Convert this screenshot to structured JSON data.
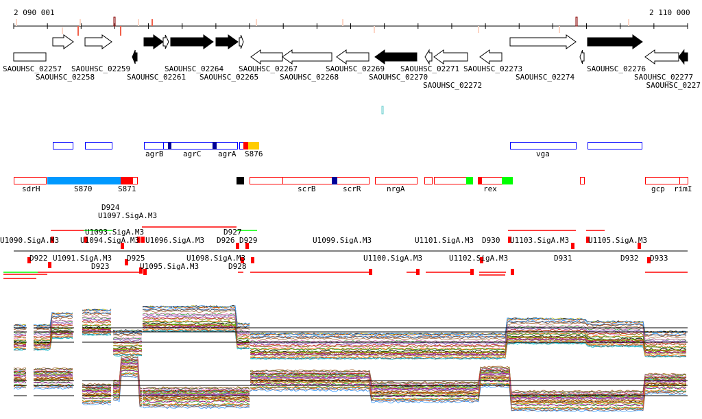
{
  "ruler": {
    "start_label": "2 090 001",
    "end_label": "2 110 000"
  },
  "genes": [
    "SAOUHSC_02257",
    "SAOUHSC_02258",
    "SAOUHSC_02259",
    "SAOUHSC_02261",
    "SAOUHSC_02264",
    "SAOUHSC_02265",
    "SAOUHSC_02267",
    "SAOUHSC_02268",
    "SAOUHSC_02269",
    "SAOUHSC_02270",
    "SAOUHSC_02271",
    "SAOUHSC_02272",
    "SAOUHSC_02273",
    "SAOUHSC_02274",
    "SAOUHSC_02276",
    "SAOUHSC_02277",
    "SAOUHSC_0227"
  ],
  "blue_features": [
    "agrB",
    "agrC",
    "agrA",
    "S876",
    "vga"
  ],
  "red_features": [
    "sdrH",
    "S870",
    "S871",
    "scrB",
    "scrR",
    "nrgA",
    "rex",
    "gcp",
    "rimI"
  ],
  "operons": [
    "U1090.SigA.M3",
    "U1091.SigA.M3",
    "U1093.SigA.M3",
    "U1094.SigA.M3",
    "U1097.SigA.M3",
    "U1095.SigA.M3",
    "U1096.SigA.M3",
    "U1098.SigA.M3",
    "U1099.SigA.M3",
    "U1100.SigA.M3",
    "U1101.SigA.M3",
    "U1102.SigA.M3",
    "U1103.SigA.M3",
    "U1105.SigA.M3",
    "D922",
    "D923",
    "D924",
    "D925",
    "D926",
    "D927",
    "D928",
    "D929",
    "D930",
    "D931",
    "D932",
    "D933"
  ],
  "colors": {
    "gene_fill": "#000000",
    "blue_box": "#0000ff",
    "red_box": "#ff0000",
    "navy": "#000099",
    "azure": "#0099ff",
    "gold": "#ffcc00",
    "green": "#00ff00",
    "snp_light": "#fcd5c5",
    "snp_dark": "#f0604a"
  }
}
